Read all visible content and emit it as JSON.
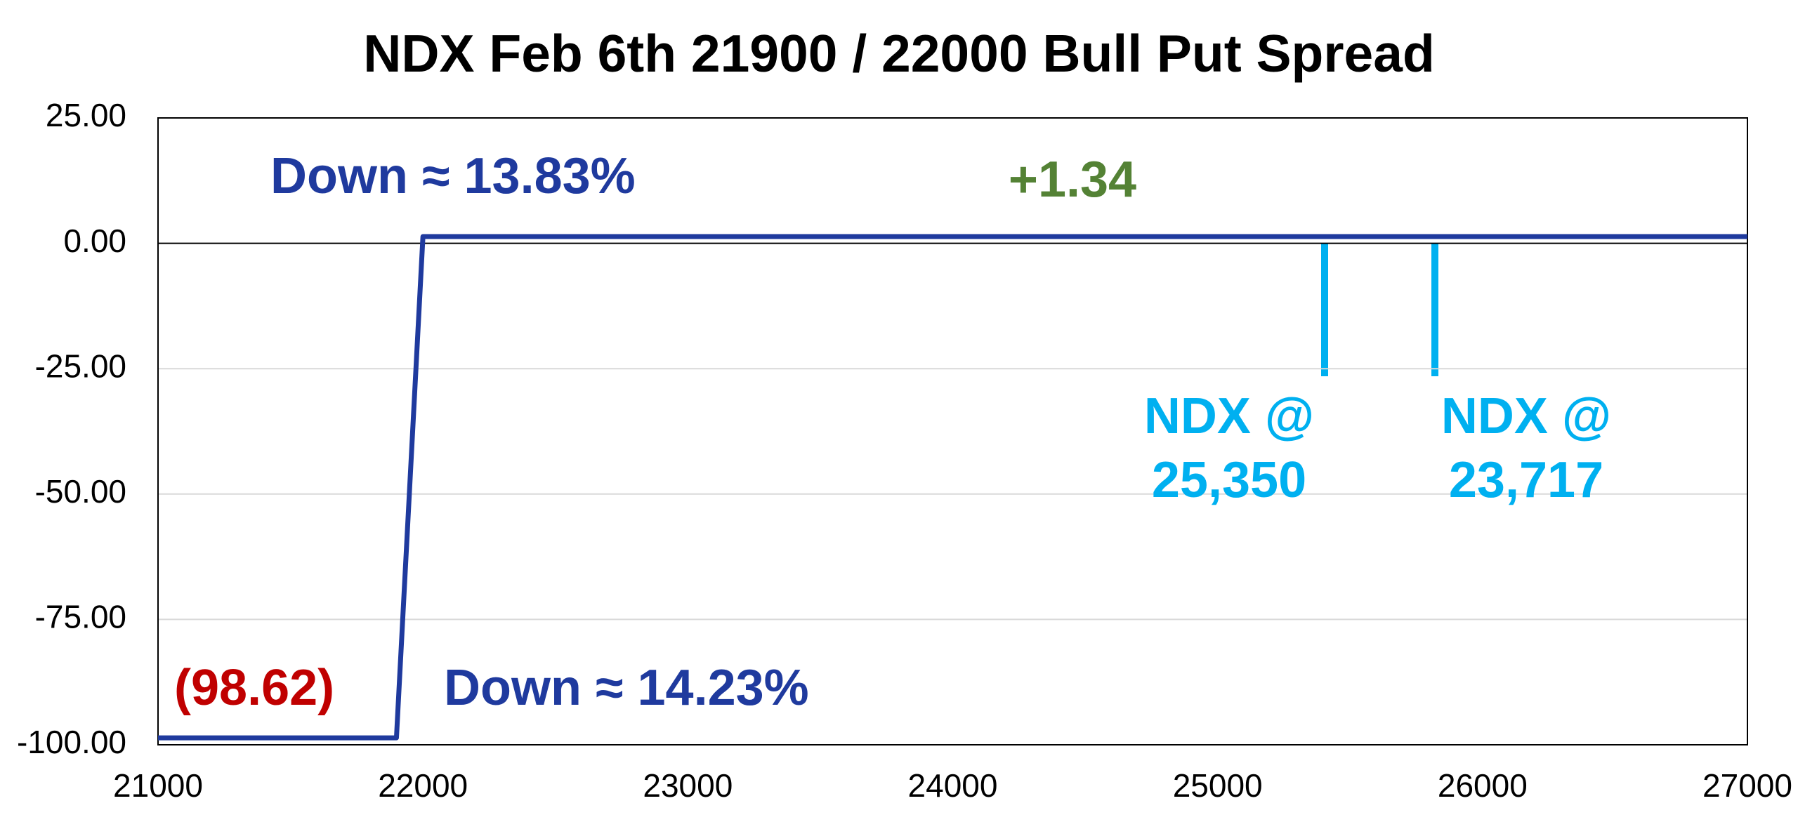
{
  "chart_data": {
    "type": "line",
    "title": "NDX Feb 6th 21900 / 22000 Bull Put Spread",
    "x": [
      21000,
      21900,
      22000,
      27000
    ],
    "series": [
      {
        "name": "Bull Put Spread",
        "color": "#1f3a9e",
        "values": [
          -98.62,
          -98.62,
          1.34,
          1.34
        ]
      }
    ],
    "xlim": [
      21000,
      27000
    ],
    "xticks": [
      21000,
      22000,
      23000,
      24000,
      25000,
      26000,
      27000
    ],
    "ylim": [
      -100,
      25
    ],
    "yticks": [
      {
        "value": -100,
        "label": "-100.00"
      },
      {
        "value": -75,
        "label": "-75.00"
      },
      {
        "value": -50,
        "label": "-50.00"
      },
      {
        "value": -25,
        "label": "-25.00"
      },
      {
        "value": 0,
        "label": "0.00"
      },
      {
        "value": 25,
        "label": "25.00"
      }
    ],
    "grid": true,
    "annotations": [
      {
        "lines": [
          "Down ≈ 13.83%"
        ],
        "color": "#1f3a9e"
      },
      {
        "lines": [
          "+1.34"
        ],
        "color": "#548235"
      },
      {
        "lines": [
          "(98.62)"
        ],
        "color": "#c00000"
      },
      {
        "lines": [
          "Down ≈ 14.23%"
        ],
        "color": "#1f3a9e"
      },
      {
        "lines": [
          "NDX @",
          "25,350"
        ],
        "color": "#00b0f0"
      },
      {
        "lines": [
          "NDX @",
          "23,717"
        ],
        "color": "#00b0f0"
      }
    ]
  }
}
